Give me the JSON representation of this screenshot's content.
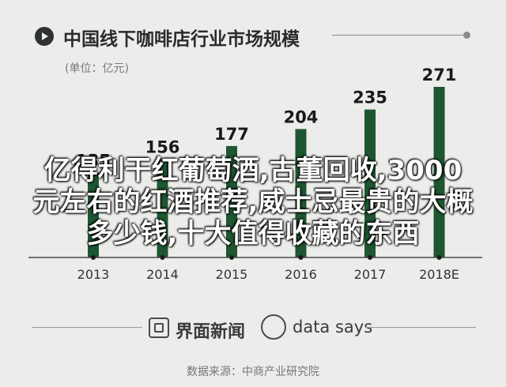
{
  "header": {
    "title": "中国线下咖啡店行业市场规模",
    "unit": "(单位：亿元)"
  },
  "overlay_text": "亿得利干红葡萄酒,古董回收,3000元左右的红酒推荐,威士忌最贵的大概多少钱,十大值得收藏的东西",
  "footer": {
    "brand_left": "界面新闻",
    "brand_right": "data says",
    "source": "数据来源：中商产业研究院"
  },
  "colors": {
    "bar": "#1e5631",
    "background": "#ececea",
    "text": "#2b2b2b"
  },
  "chart_data": {
    "type": "bar",
    "title": "中国线下咖啡店行业市场规模",
    "ylabel": "(单位：亿元)",
    "categories": [
      "2013",
      "2014",
      "2015",
      "2016",
      "2017",
      "2018E"
    ],
    "values": [
      135,
      156,
      177,
      204,
      235,
      271
    ],
    "ylim": [
      0,
      271
    ],
    "grid": false
  }
}
